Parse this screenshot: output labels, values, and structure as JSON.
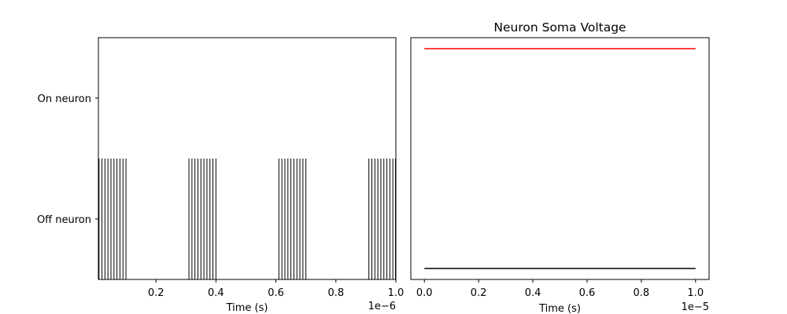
{
  "chart_data": [
    {
      "type": "raster",
      "title": "",
      "xlabel": "Time (s)",
      "ylabel": "",
      "x_tick_labels": [
        "0.2",
        "0.4",
        "0.6",
        "0.8",
        "1.0"
      ],
      "x_offset_label": "1e−6",
      "xlim": [
        0.0,
        1.0
      ],
      "x_scale": 1e-06,
      "categories": [
        "On neuron",
        "Off neuron"
      ],
      "series": [
        {
          "name": "On neuron",
          "spike_times": []
        },
        {
          "name": "Off neuron",
          "spike_times": [
            0.01,
            0.02,
            0.03,
            0.04,
            0.05,
            0.06,
            0.07,
            0.08,
            0.09,
            0.1,
            0.31,
            0.32,
            0.33,
            0.34,
            0.35,
            0.36,
            0.37,
            0.38,
            0.39,
            0.4,
            0.61,
            0.62,
            0.63,
            0.64,
            0.65,
            0.66,
            0.67,
            0.68,
            0.69,
            0.7,
            0.91,
            0.92,
            0.93,
            0.94,
            0.95,
            0.96,
            0.97,
            0.98,
            0.99,
            1.0
          ]
        }
      ],
      "colors": {
        "spikes": "#000000"
      }
    },
    {
      "type": "line",
      "title": "Neuron Soma Voltage",
      "xlabel": "Time (s)",
      "ylabel": "",
      "x_tick_labels": [
        "0.0",
        "0.2",
        "0.4",
        "0.6",
        "0.8",
        "1.0"
      ],
      "x_offset_label": "1e−5",
      "xlim": [
        -0.05,
        1.05
      ],
      "x_scale": 1e-05,
      "ylim": [
        -0.05,
        1.05
      ],
      "y_ticks_shown": false,
      "series": [
        {
          "color": "#ff0000",
          "x": [
            0.0,
            1.0
          ],
          "y": [
            1.0,
            1.0
          ]
        },
        {
          "color": "#000000",
          "x": [
            0.0,
            1.0
          ],
          "y": [
            0.0,
            0.0
          ]
        }
      ]
    }
  ]
}
